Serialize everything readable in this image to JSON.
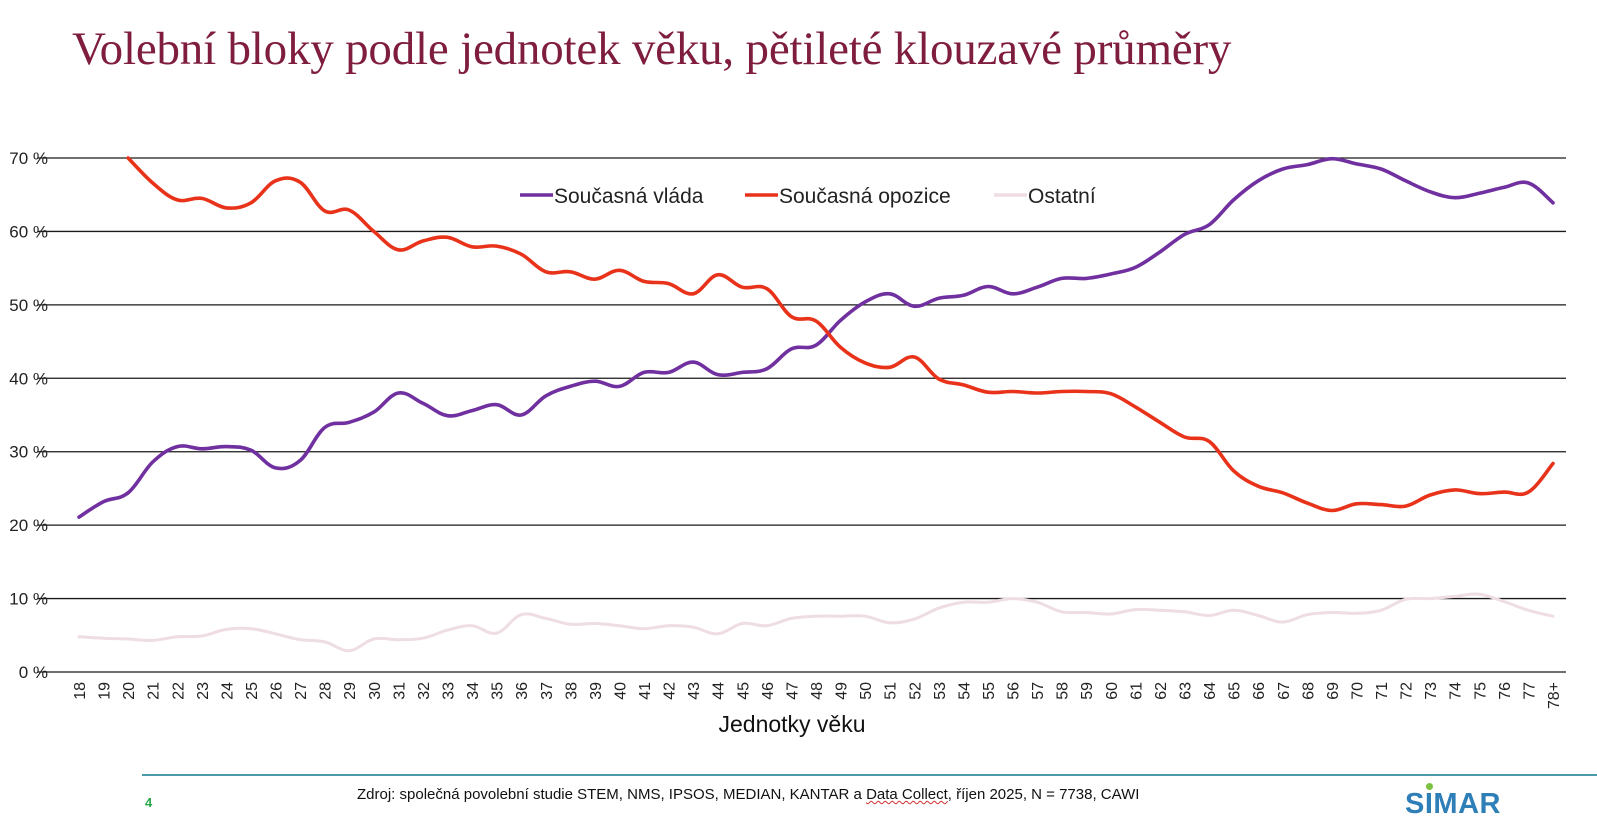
{
  "title": "Volební bloky podle jednotek věku, pětileté klouzavé průměry",
  "footer": {
    "page_number": "4",
    "source_prefix": "Zdroj: společná povolební studie STEM, NMS, IPSOS, MEDIAN, KANTAR a ",
    "source_spell": "Data Collect",
    "source_suffix": ", říjen 2025, N = 7738, CAWI",
    "logo_pre": "S",
    "logo_i": "I",
    "logo_post": "MAR"
  },
  "chart_data": {
    "type": "line",
    "title": "Volební bloky podle jednotek věku, pětileté klouzavé průměry",
    "xlabel": "Jednotky věku",
    "ylabel": "",
    "ylim": [
      0,
      70
    ],
    "yticks": [
      "0 %",
      "10 %",
      "20 %",
      "30 %",
      "40 %",
      "50 %",
      "60 %",
      "70 %"
    ],
    "ytick_values": [
      0,
      10,
      20,
      30,
      40,
      50,
      60,
      70
    ],
    "grid": true,
    "legend_position": "top-center",
    "categories": [
      "18",
      "19",
      "20",
      "21",
      "22",
      "23",
      "24",
      "25",
      "26",
      "27",
      "28",
      "29",
      "30",
      "31",
      "32",
      "33",
      "34",
      "35",
      "36",
      "37",
      "38",
      "39",
      "40",
      "41",
      "42",
      "43",
      "44",
      "45",
      "46",
      "47",
      "48",
      "49",
      "50",
      "51",
      "52",
      "53",
      "54",
      "55",
      "56",
      "57",
      "58",
      "59",
      "60",
      "61",
      "62",
      "63",
      "64",
      "65",
      "66",
      "67",
      "68",
      "69",
      "70",
      "71",
      "72",
      "73",
      "74",
      "75",
      "76",
      "77",
      "78+"
    ],
    "series": [
      {
        "name": "Současná vláda",
        "color": "#7030a0",
        "values": [
          21.1,
          23.2,
          24.4,
          28.6,
          30.7,
          30.4,
          30.7,
          30.2,
          27.8,
          28.8,
          33.3,
          34.0,
          35.4,
          38.0,
          36.6,
          34.9,
          35.6,
          36.4,
          35.0,
          37.6,
          38.9,
          39.6,
          38.9,
          40.8,
          40.8,
          42.2,
          40.5,
          40.8,
          41.3,
          44.0,
          44.5,
          47.9,
          50.4,
          51.5,
          49.8,
          50.9,
          51.3,
          52.5,
          51.5,
          52.4,
          53.6,
          53.6,
          54.2,
          55.1,
          57.2,
          59.6,
          60.9,
          64.3,
          66.9,
          68.5,
          69.1,
          69.9,
          69.2,
          68.5,
          66.9,
          65.4,
          64.6,
          65.2,
          66.0,
          66.6,
          63.9
        ]
      },
      {
        "name": "Současná opozice",
        "color": "#e8321a",
        "values": [
          null,
          null,
          70.0,
          66.6,
          64.3,
          64.5,
          63.2,
          63.9,
          66.9,
          66.7,
          62.8,
          62.9,
          60.0,
          57.5,
          58.7,
          59.2,
          57.9,
          58.0,
          56.9,
          54.5,
          54.5,
          53.5,
          54.7,
          53.2,
          52.9,
          51.5,
          54.1,
          52.4,
          52.2,
          48.4,
          47.8,
          44.2,
          42.1,
          41.5,
          42.9,
          39.9,
          39.1,
          38.1,
          38.2,
          38.0,
          38.2,
          38.2,
          37.9,
          36.1,
          34.0,
          32.0,
          31.4,
          27.4,
          25.3,
          24.4,
          23.0,
          22.0,
          22.9,
          22.8,
          22.6,
          24.1,
          24.8,
          24.3,
          24.5,
          24.5,
          28.4
        ]
      },
      {
        "name": "Ostatní",
        "color": "#eedde2",
        "values": [
          4.8,
          4.6,
          4.5,
          4.3,
          4.8,
          4.9,
          5.8,
          5.9,
          5.2,
          4.4,
          4.1,
          2.9,
          4.5,
          4.4,
          4.6,
          5.7,
          6.3,
          5.3,
          7.8,
          7.3,
          6.5,
          6.6,
          6.3,
          5.9,
          6.3,
          6.1,
          5.2,
          6.6,
          6.3,
          7.3,
          7.6,
          7.6,
          7.6,
          6.7,
          7.2,
          8.7,
          9.5,
          9.5,
          10.0,
          9.5,
          8.2,
          8.1,
          7.9,
          8.5,
          8.4,
          8.2,
          7.7,
          8.4,
          7.7,
          6.8,
          7.8,
          8.1,
          8.0,
          8.4,
          9.9,
          10.0,
          10.3,
          10.6,
          9.6,
          8.4,
          7.6
        ]
      }
    ]
  }
}
